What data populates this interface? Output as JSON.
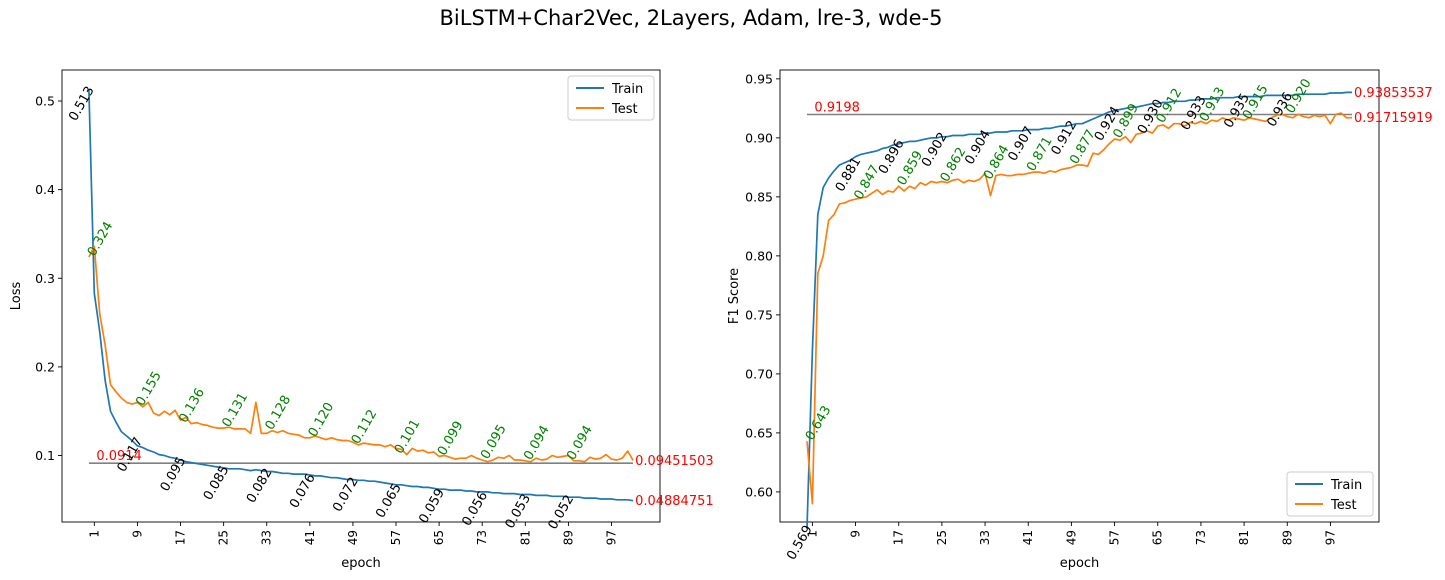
{
  "figure_title": "BiLSTM+Char2Vec, 2Layers, Adam, lre-3, wde-5",
  "colors": {
    "train": "#1f77b4",
    "test": "#ff7f0e",
    "hline": "#808080",
    "best": "#ff0000",
    "test_ann": "#008000",
    "train_ann": "#000000"
  },
  "chart_data": [
    {
      "type": "line",
      "xlabel": "epoch",
      "ylabel": "Loss",
      "x_ticks": [
        1,
        9,
        17,
        25,
        33,
        41,
        49,
        57,
        65,
        73,
        81,
        89,
        97
      ],
      "y_ticks": [
        "0.1",
        "0.2",
        "0.3",
        "0.4",
        "0.5"
      ],
      "xlim": [
        -5,
        106
      ],
      "ylim": [
        0.025,
        0.535
      ],
      "legend": {
        "position": "top-right",
        "entries": [
          "Train",
          "Test"
        ]
      },
      "series": [
        {
          "name": "Train",
          "values": [
            0.513,
            0.283,
            0.24,
            0.185,
            0.15,
            0.138,
            0.127,
            0.122,
            0.117,
            0.111,
            0.109,
            0.106,
            0.104,
            0.101,
            0.1,
            0.098,
            0.097,
            0.095,
            0.093,
            0.092,
            0.091,
            0.09,
            0.089,
            0.088,
            0.087,
            0.086,
            0.085,
            0.085,
            0.085,
            0.084,
            0.083,
            0.084,
            0.083,
            0.082,
            0.082,
            0.081,
            0.08,
            0.08,
            0.079,
            0.079,
            0.079,
            0.078,
            0.077,
            0.077,
            0.076,
            0.075,
            0.075,
            0.074,
            0.073,
            0.073,
            0.072,
            0.072,
            0.071,
            0.071,
            0.07,
            0.069,
            0.068,
            0.067,
            0.067,
            0.066,
            0.065,
            0.065,
            0.064,
            0.064,
            0.063,
            0.062,
            0.062,
            0.061,
            0.061,
            0.061,
            0.06,
            0.06,
            0.059,
            0.059,
            0.059,
            0.058,
            0.058,
            0.057,
            0.057,
            0.057,
            0.056,
            0.056,
            0.056,
            0.055,
            0.055,
            0.055,
            0.054,
            0.054,
            0.054,
            0.053,
            0.053,
            0.053,
            0.052,
            0.052,
            0.052,
            0.051,
            0.051,
            0.051,
            0.05,
            0.05,
            0.05,
            0.049
          ]
        },
        {
          "name": "Test",
          "values": [
            0.324,
            0.336,
            0.26,
            0.225,
            0.18,
            0.172,
            0.165,
            0.16,
            0.158,
            0.16,
            0.155,
            0.16,
            0.148,
            0.145,
            0.15,
            0.146,
            0.151,
            0.14,
            0.143,
            0.136,
            0.137,
            0.135,
            0.134,
            0.132,
            0.131,
            0.131,
            0.132,
            0.13,
            0.13,
            0.13,
            0.125,
            0.16,
            0.125,
            0.125,
            0.128,
            0.126,
            0.128,
            0.125,
            0.124,
            0.123,
            0.12,
            0.12,
            0.122,
            0.12,
            0.118,
            0.12,
            0.118,
            0.117,
            0.117,
            0.115,
            0.112,
            0.114,
            0.113,
            0.112,
            0.112,
            0.11,
            0.112,
            0.108,
            0.107,
            0.101,
            0.108,
            0.105,
            0.106,
            0.103,
            0.104,
            0.099,
            0.1,
            0.098,
            0.096,
            0.097,
            0.097,
            0.1,
            0.097,
            0.095,
            0.093,
            0.095,
            0.098,
            0.097,
            0.1,
            0.095,
            0.095,
            0.094,
            0.093,
            0.097,
            0.095,
            0.096,
            0.1,
            0.098,
            0.099,
            0.1,
            0.094,
            0.094,
            0.093,
            0.098,
            0.096,
            0.097,
            0.101,
            0.096,
            0.095,
            0.097,
            0.105,
            0.0945
          ]
        }
      ],
      "hline": {
        "value": 0.0914,
        "label": "0.0914"
      },
      "end_labels": {
        "train": "0.04884751",
        "test": "0.09451503"
      },
      "test_annotations": [
        {
          "x": 1,
          "y": 0.324,
          "label": "0.324"
        },
        {
          "x": 10,
          "y": 0.155,
          "label": "0.155"
        },
        {
          "x": 18,
          "y": 0.136,
          "label": "0.136"
        },
        {
          "x": 26,
          "y": 0.131,
          "label": "0.131"
        },
        {
          "x": 34,
          "y": 0.128,
          "label": "0.128"
        },
        {
          "x": 42,
          "y": 0.12,
          "label": "0.120"
        },
        {
          "x": 50,
          "y": 0.112,
          "label": "0.112"
        },
        {
          "x": 58,
          "y": 0.101,
          "label": "0.101"
        },
        {
          "x": 66,
          "y": 0.099,
          "label": "0.099"
        },
        {
          "x": 74,
          "y": 0.095,
          "label": "0.095"
        },
        {
          "x": 82,
          "y": 0.094,
          "label": "0.094"
        },
        {
          "x": 90,
          "y": 0.094,
          "label": "0.094"
        }
      ],
      "train_annotations": [
        {
          "x": 1,
          "y": 0.513,
          "label": "0.513"
        },
        {
          "x": 10,
          "y": 0.117,
          "label": "0.117"
        },
        {
          "x": 18,
          "y": 0.095,
          "label": "0.095"
        },
        {
          "x": 26,
          "y": 0.085,
          "label": "0.085"
        },
        {
          "x": 34,
          "y": 0.082,
          "label": "0.082"
        },
        {
          "x": 42,
          "y": 0.076,
          "label": "0.076"
        },
        {
          "x": 50,
          "y": 0.072,
          "label": "0.072"
        },
        {
          "x": 58,
          "y": 0.065,
          "label": "0.065"
        },
        {
          "x": 66,
          "y": 0.059,
          "label": "0.059"
        },
        {
          "x": 74,
          "y": 0.056,
          "label": "0.056"
        },
        {
          "x": 82,
          "y": 0.053,
          "label": "0.053"
        },
        {
          "x": 90,
          "y": 0.052,
          "label": "0.052"
        }
      ]
    },
    {
      "type": "line",
      "xlabel": "epoch",
      "ylabel": "F1 Score",
      "x_ticks": [
        1,
        9,
        17,
        25,
        33,
        41,
        49,
        57,
        65,
        73,
        81,
        89,
        97
      ],
      "y_ticks": [
        "0.60",
        "0.65",
        "0.70",
        "0.75",
        "0.80",
        "0.85",
        "0.90",
        "0.95"
      ],
      "xlim": [
        -5,
        106
      ],
      "ylim": [
        0.5745,
        0.9575
      ],
      "legend": {
        "position": "bottom-right",
        "entries": [
          "Train",
          "Test"
        ]
      },
      "series": [
        {
          "name": "Train",
          "values": [
            0.569,
            0.72,
            0.835,
            0.858,
            0.866,
            0.872,
            0.877,
            0.879,
            0.881,
            0.884,
            0.886,
            0.887,
            0.888,
            0.889,
            0.891,
            0.892,
            0.894,
            0.895,
            0.896,
            0.897,
            0.897,
            0.898,
            0.899,
            0.9,
            0.9,
            0.901,
            0.901,
            0.902,
            0.902,
            0.902,
            0.903,
            0.903,
            0.903,
            0.904,
            0.904,
            0.905,
            0.905,
            0.905,
            0.906,
            0.906,
            0.906,
            0.907,
            0.907,
            0.907,
            0.908,
            0.908,
            0.909,
            0.91,
            0.91,
            0.911,
            0.912,
            0.912,
            0.914,
            0.916,
            0.918,
            0.92,
            0.922,
            0.923,
            0.924,
            0.925,
            0.926,
            0.926,
            0.927,
            0.928,
            0.929,
            0.929,
            0.93,
            0.93,
            0.931,
            0.931,
            0.931,
            0.932,
            0.932,
            0.933,
            0.933,
            0.933,
            0.934,
            0.934,
            0.934,
            0.934,
            0.935,
            0.935,
            0.935,
            0.935,
            0.935,
            0.936,
            0.936,
            0.936,
            0.936,
            0.936,
            0.936,
            0.937,
            0.937,
            0.937,
            0.937,
            0.937,
            0.937,
            0.938,
            0.938,
            0.938,
            0.9385,
            0.9385
          ]
        },
        {
          "name": "Test",
          "values": [
            0.643,
            0.59,
            0.785,
            0.8,
            0.83,
            0.835,
            0.844,
            0.845,
            0.847,
            0.848,
            0.849,
            0.85,
            0.853,
            0.856,
            0.852,
            0.855,
            0.854,
            0.859,
            0.855,
            0.859,
            0.857,
            0.862,
            0.86,
            0.863,
            0.862,
            0.863,
            0.862,
            0.864,
            0.865,
            0.862,
            0.864,
            0.863,
            0.865,
            0.87,
            0.851,
            0.868,
            0.869,
            0.868,
            0.868,
            0.869,
            0.869,
            0.87,
            0.871,
            0.871,
            0.87,
            0.872,
            0.871,
            0.873,
            0.874,
            0.875,
            0.877,
            0.877,
            0.876,
            0.887,
            0.886,
            0.89,
            0.895,
            0.899,
            0.898,
            0.901,
            0.896,
            0.903,
            0.904,
            0.906,
            0.904,
            0.91,
            0.911,
            0.908,
            0.912,
            0.912,
            0.91,
            0.913,
            0.912,
            0.914,
            0.912,
            0.915,
            0.914,
            0.917,
            0.915,
            0.917,
            0.916,
            0.915,
            0.917,
            0.916,
            0.915,
            0.914,
            0.917,
            0.919,
            0.92,
            0.918,
            0.917,
            0.92,
            0.918,
            0.917,
            0.919,
            0.918,
            0.919,
            0.912,
            0.92,
            0.921,
            0.917,
            0.9172
          ]
        }
      ],
      "hline": {
        "value": 0.9198,
        "label": "0.9198"
      },
      "end_labels": {
        "train": "0.93853537",
        "test": "0.91715919"
      },
      "test_annotations": [
        {
          "x": 1,
          "y": 0.643,
          "label": "0.643"
        },
        {
          "x": 10,
          "y": 0.847,
          "label": "0.847"
        },
        {
          "x": 18,
          "y": 0.859,
          "label": "0.859"
        },
        {
          "x": 26,
          "y": 0.862,
          "label": "0.862"
        },
        {
          "x": 34,
          "y": 0.864,
          "label": "0.864"
        },
        {
          "x": 42,
          "y": 0.871,
          "label": "0.871"
        },
        {
          "x": 50,
          "y": 0.877,
          "label": "0.877"
        },
        {
          "x": 58,
          "y": 0.899,
          "label": "0.899"
        },
        {
          "x": 66,
          "y": 0.912,
          "label": "0.912"
        },
        {
          "x": 74,
          "y": 0.913,
          "label": "0.913"
        },
        {
          "x": 82,
          "y": 0.915,
          "label": "0.915"
        },
        {
          "x": 90,
          "y": 0.92,
          "label": "0.920"
        }
      ],
      "train_annotations": [
        {
          "x": 1,
          "y": 0.569,
          "label": "0.569"
        },
        {
          "x": 10,
          "y": 0.881,
          "label": "0.881"
        },
        {
          "x": 18,
          "y": 0.896,
          "label": "0.896"
        },
        {
          "x": 26,
          "y": 0.902,
          "label": "0.902"
        },
        {
          "x": 34,
          "y": 0.904,
          "label": "0.904"
        },
        {
          "x": 42,
          "y": 0.907,
          "label": "0.907"
        },
        {
          "x": 50,
          "y": 0.912,
          "label": "0.912"
        },
        {
          "x": 58,
          "y": 0.924,
          "label": "0.924"
        },
        {
          "x": 66,
          "y": 0.93,
          "label": "0.930"
        },
        {
          "x": 74,
          "y": 0.933,
          "label": "0.933"
        },
        {
          "x": 82,
          "y": 0.935,
          "label": "0.935"
        },
        {
          "x": 90,
          "y": 0.936,
          "label": "0.936"
        }
      ]
    }
  ]
}
